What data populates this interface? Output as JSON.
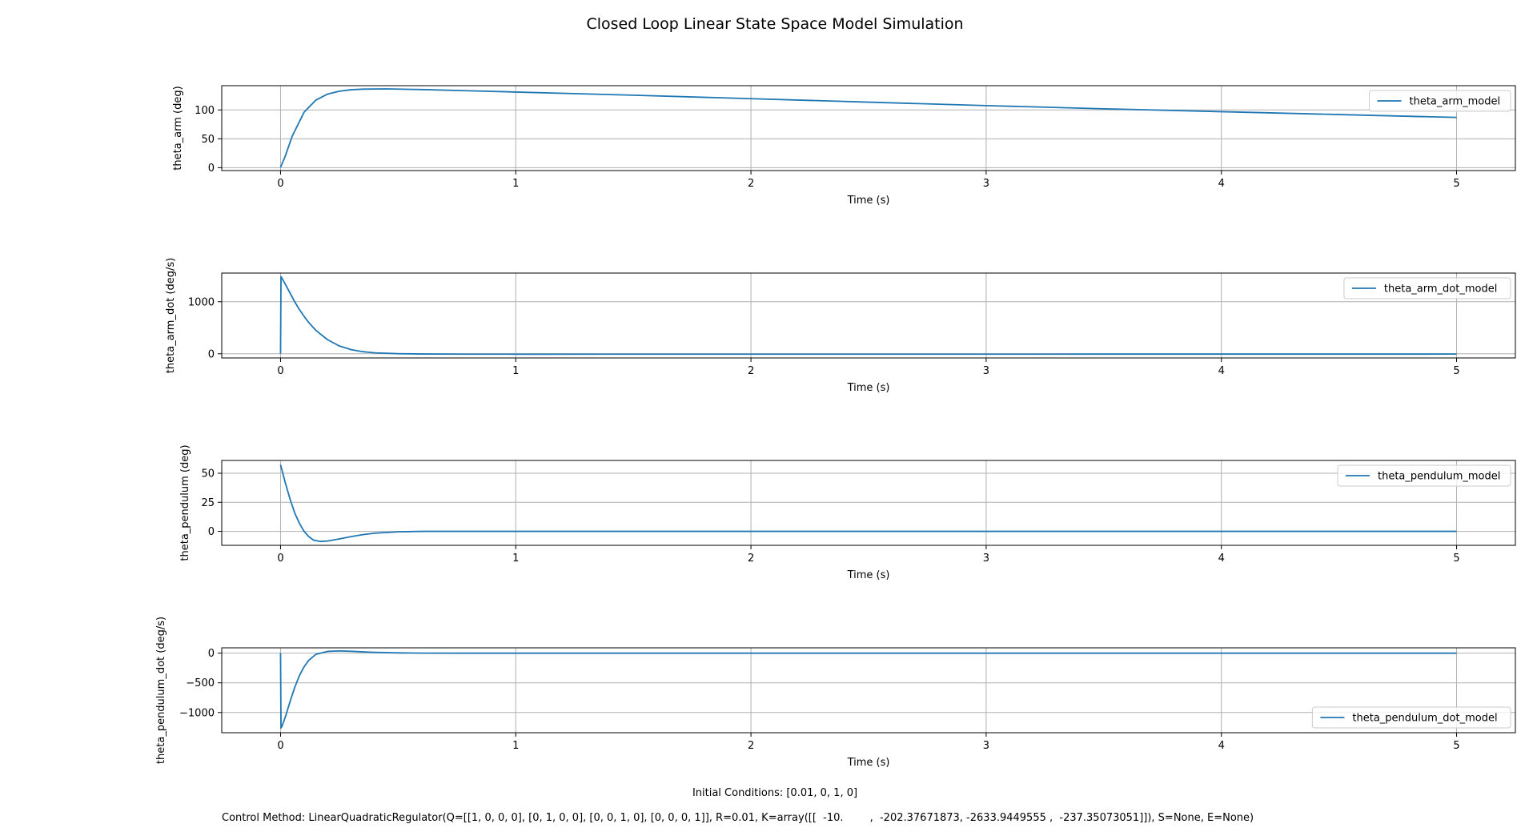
{
  "chart_data": {
    "title": "Closed Loop Linear State Space Model Simulation",
    "footnotes": [
      "Initial Conditions: [0.01, 0, 1, 0]",
      "Control Method: LinearQuadraticRegulator(Q=[[1, 0, 0, 0], [0, 1, 0, 0], [0, 0, 1, 0], [0, 0, 0, 1]], R=0.01, K=array([[  -10.        ,  -202.37671873, -2633.9449555 ,  -237.35073051]]), S=None, E=None)"
    ],
    "colors": {
      "series": "#1f77b4",
      "grid": "#b0b0b0",
      "legend_edge": "#cccccc"
    },
    "panels": [
      {
        "type": "line",
        "xlabel": "Time (s)",
        "ylabel": "theta_arm (deg)",
        "xlim": [
          -0.25,
          5.25
        ],
        "ylim": [
          -5,
          142
        ],
        "xticks": [
          0,
          1,
          2,
          3,
          4,
          5
        ],
        "yticks": [
          0,
          50,
          100
        ],
        "grid": true,
        "legend_loc": "upper right",
        "series": [
          {
            "name": "theta_arm_model",
            "x": [
              0,
              0.02,
              0.05,
              0.1,
              0.15,
              0.2,
              0.25,
              0.3,
              0.35,
              0.45,
              0.6,
              0.8,
              1.0,
              1.5,
              2.0,
              2.5,
              3.0,
              3.5,
              4.0,
              4.5,
              5.0
            ],
            "y": [
              0.6,
              20,
              55,
              96,
              117,
              127.5,
              132.5,
              135,
              136,
              136.5,
              135.3,
              133.2,
              131,
              125.5,
              119.5,
              113.5,
              107.5,
              102,
              97,
              92,
              87
            ]
          }
        ]
      },
      {
        "type": "line",
        "xlabel": "Time (s)",
        "ylabel": "theta_arm_dot (deg/s)",
        "xlim": [
          -0.25,
          5.25
        ],
        "ylim": [
          -80,
          1550
        ],
        "xticks": [
          0,
          1,
          2,
          3,
          4,
          5
        ],
        "yticks": [
          0,
          1000
        ],
        "grid": true,
        "legend_loc": "upper right",
        "series": [
          {
            "name": "theta_arm_dot_model",
            "x": [
              0,
              0.002,
              0.005,
              0.01,
              0.02,
              0.04,
              0.06,
              0.08,
              0.1,
              0.12,
              0.15,
              0.2,
              0.25,
              0.3,
              0.35,
              0.4,
              0.5,
              0.6,
              0.8,
              1.0,
              2.0,
              3.0,
              4.0,
              5.0
            ],
            "y": [
              0,
              1480,
              1460,
              1420,
              1340,
              1170,
              1000,
              850,
              720,
              600,
              450,
              270,
              150,
              80,
              40,
              18,
              2,
              -4,
              -7,
              -7.5,
              -7,
              -6.5,
              -6,
              -5.5
            ]
          }
        ]
      },
      {
        "type": "line",
        "xlabel": "Time (s)",
        "ylabel": "theta_pendulum (deg)",
        "xlim": [
          -0.25,
          5.25
        ],
        "ylim": [
          -12,
          61
        ],
        "xticks": [
          0,
          1,
          2,
          3,
          4,
          5
        ],
        "yticks": [
          0,
          25,
          50
        ],
        "grid": true,
        "legend_loc": "upper right",
        "series": [
          {
            "name": "theta_pendulum_model",
            "x": [
              0,
              0.02,
              0.04,
              0.06,
              0.08,
              0.1,
              0.12,
              0.14,
              0.17,
              0.2,
              0.25,
              0.3,
              0.35,
              0.4,
              0.5,
              0.6,
              0.8,
              1.0,
              2.0,
              3.0,
              4.0,
              5.0
            ],
            "y": [
              57.3,
              42,
              28,
              16,
              7,
              0,
              -4.5,
              -7.5,
              -8.7,
              -8.3,
              -6.5,
              -4.5,
              -2.8,
              -1.6,
              -0.4,
              0,
              0,
              0,
              0,
              0,
              0,
              0
            ]
          }
        ]
      },
      {
        "type": "line",
        "xlabel": "Time (s)",
        "ylabel": "theta_pendulum_dot (deg/s)",
        "xlim": [
          -0.25,
          5.25
        ],
        "ylim": [
          -1340,
          90
        ],
        "xticks": [
          0,
          1,
          2,
          3,
          4,
          5
        ],
        "yticks": [
          0,
          -500,
          -1000
        ],
        "grid": true,
        "legend_loc": "lower right",
        "series": [
          {
            "name": "theta_pendulum_dot_model",
            "x": [
              0,
              0.002,
              0.005,
              0.01,
              0.02,
              0.04,
              0.06,
              0.08,
              0.1,
              0.12,
              0.15,
              0.2,
              0.25,
              0.3,
              0.35,
              0.4,
              0.5,
              0.6,
              0.8,
              1.0,
              2.0,
              3.0,
              4.0,
              5.0
            ],
            "y": [
              0,
              -1260,
              -1240,
              -1190,
              -1080,
              -820,
              -580,
              -380,
              -230,
              -120,
              -20,
              30,
              38,
              32,
              22,
              14,
              5,
              1,
              0,
              0,
              0,
              0,
              0,
              0
            ]
          }
        ]
      }
    ]
  }
}
